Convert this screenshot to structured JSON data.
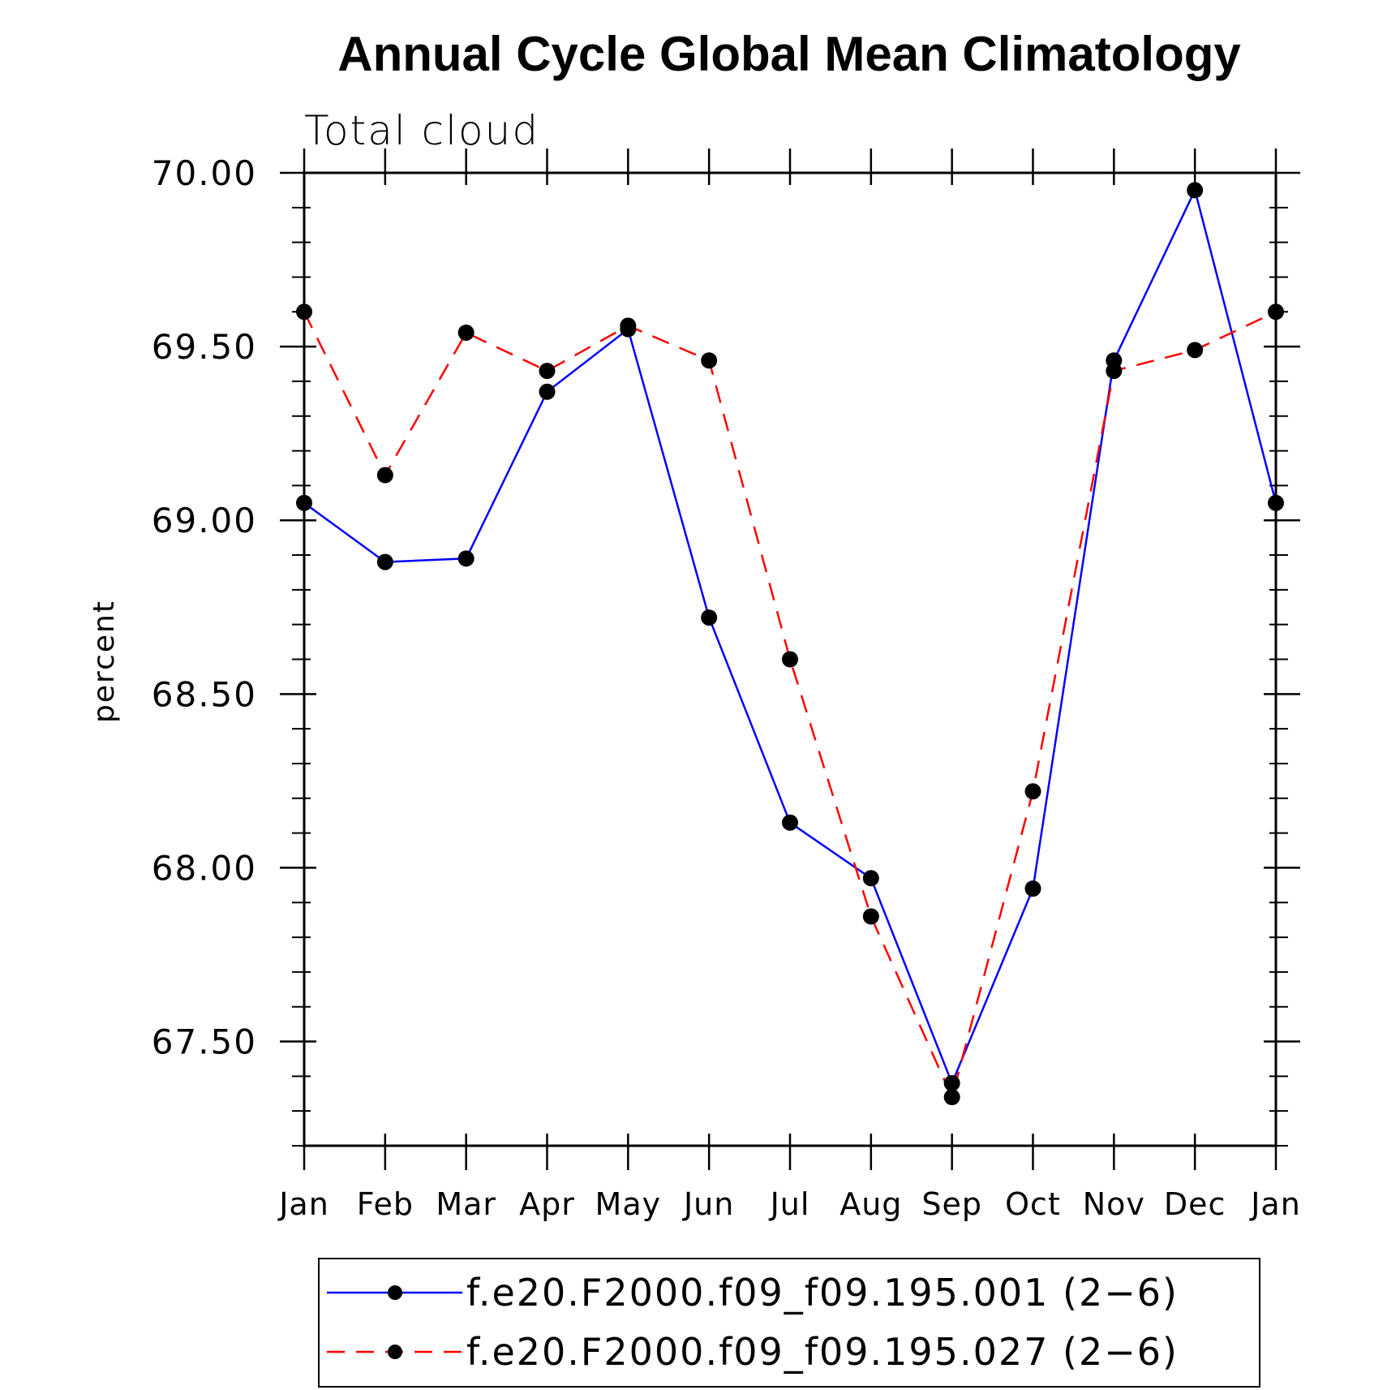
{
  "chart_data": {
    "type": "line",
    "title": "Annual Cycle Global Mean Climatology",
    "subtitle": "Total cloud",
    "xlabel": "",
    "ylabel": "percent",
    "categories": [
      "Jan",
      "Feb",
      "Mar",
      "Apr",
      "May",
      "Jun",
      "Jul",
      "Aug",
      "Sep",
      "Oct",
      "Nov",
      "Dec",
      "Jan"
    ],
    "ylim": [
      67.2,
      70.0
    ],
    "yticks": [
      67.5,
      68.0,
      68.5,
      69.0,
      69.5,
      70.0
    ],
    "ytick_labels": [
      "67.50",
      "68.00",
      "68.50",
      "69.00",
      "69.50",
      "70.00"
    ],
    "legend_position": "bottom-center",
    "series": [
      {
        "name": "f.e20.F2000.f09_f09.195.001 (2−6)",
        "color": "#0000ff",
        "dash": "solid",
        "values": [
          69.05,
          68.88,
          68.89,
          69.37,
          69.55,
          68.72,
          68.13,
          67.97,
          67.38,
          67.94,
          69.46,
          69.95,
          69.05
        ]
      },
      {
        "name": "f.e20.F2000.f09_f09.195.027 (2−6)",
        "color": "#ff0000",
        "dash": "dashed",
        "values": [
          69.6,
          69.13,
          69.54,
          69.43,
          69.56,
          69.46,
          68.6,
          67.86,
          67.34,
          68.22,
          69.43,
          69.49,
          69.6
        ]
      }
    ]
  }
}
